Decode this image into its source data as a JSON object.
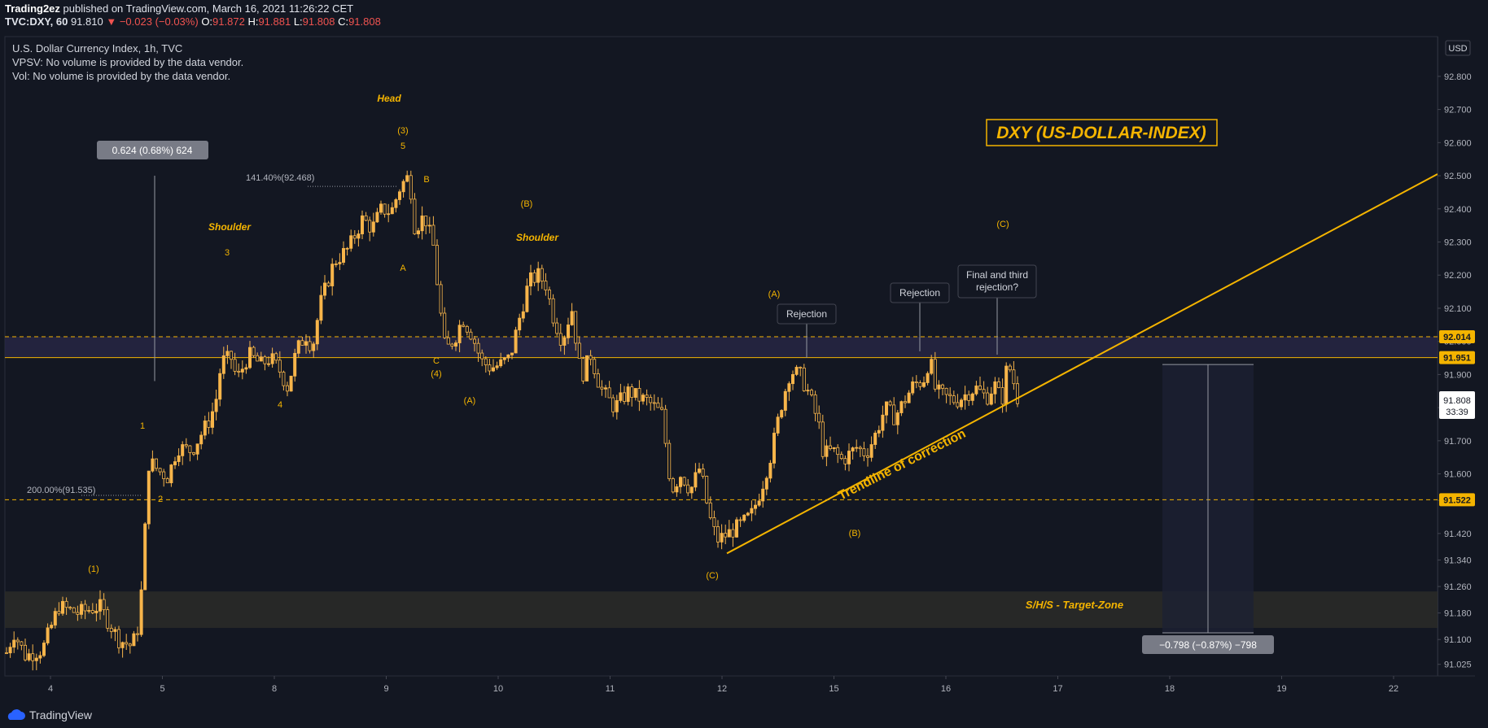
{
  "publish": {
    "author": "Trading2ez",
    "published_on": "published on TradingView.com, March 16, 2021 11:26:22 CET"
  },
  "quote": {
    "symbol": "TVC:DXY, 60",
    "last": "91.810",
    "change": "−0.023 (−0.03%)",
    "o_label": "O:",
    "o": "91.872",
    "h_label": "H:",
    "h": "91.881",
    "l_label": "L:",
    "l": "91.808",
    "c_label": "C:",
    "c": "91.808"
  },
  "legend": {
    "line1": "U.S. Dollar Currency Index, 1h, TVC",
    "line2": "VPSV: No volume is provided by the data vendor.",
    "line3": "Vol: No volume is provided by the data vendor."
  },
  "footer": {
    "brand": "TradingView"
  },
  "colors": {
    "background": "#131722",
    "candle": "#f7b54a",
    "annotation": "#f4b400",
    "trendline": "#f4b400",
    "axis_text": "#b2b5be",
    "dashed_level": "#f4b400",
    "zone": "#2a2848"
  },
  "chart_data": {
    "type": "candlestick",
    "title": "DXY (US-DOLLAR-INDEX)",
    "currency": "USD",
    "ylim": [
      90.99,
      92.92
    ],
    "y_ticks": [
      "92.800",
      "92.700",
      "92.600",
      "92.500",
      "92.400",
      "92.300",
      "92.200",
      "92.100",
      "92.000",
      "91.900",
      "91.800",
      "91.700",
      "91.600",
      "91.520",
      "91.420",
      "91.340",
      "91.260",
      "91.180",
      "91.100",
      "91.025"
    ],
    "x_ticks": [
      "4",
      "5",
      "8",
      "9",
      "10",
      "11",
      "12",
      "15",
      "16",
      "17",
      "18",
      "19",
      "22"
    ],
    "last_price": "91.808",
    "countdown": "33:39",
    "price_labels": [
      {
        "value": "92.014",
        "price": 92.014
      },
      {
        "value": "91.951",
        "price": 91.951
      },
      {
        "value": "91.522",
        "price": 91.522
      }
    ],
    "path_points": [
      [
        0,
        91.06
      ],
      [
        8,
        91.12
      ],
      [
        20,
        91.05
      ],
      [
        38,
        91.07
      ],
      [
        55,
        91.2
      ],
      [
        75,
        91.18
      ],
      [
        98,
        91.2
      ],
      [
        118,
        91.1
      ],
      [
        132,
        91.08
      ],
      [
        140,
        91.15
      ],
      [
        146,
        91.44
      ],
      [
        150,
        91.64
      ],
      [
        160,
        91.61
      ],
      [
        170,
        91.59
      ],
      [
        180,
        91.68
      ],
      [
        195,
        91.67
      ],
      [
        205,
        91.72
      ],
      [
        215,
        91.77
      ],
      [
        222,
        91.84
      ],
      [
        226,
        91.94
      ],
      [
        238,
        91.95
      ],
      [
        242,
        91.88
      ],
      [
        255,
        91.96
      ],
      [
        268,
        91.93
      ],
      [
        278,
        91.95
      ],
      [
        288,
        91.91
      ],
      [
        296,
        91.86
      ],
      [
        305,
        91.97
      ],
      [
        315,
        92.02
      ],
      [
        322,
        91.98
      ],
      [
        330,
        92.11
      ],
      [
        345,
        92.24
      ],
      [
        360,
        92.28
      ],
      [
        375,
        92.37
      ],
      [
        385,
        92.34
      ],
      [
        395,
        92.4
      ],
      [
        405,
        92.39
      ],
      [
        415,
        92.47
      ],
      [
        424,
        92.5
      ],
      [
        430,
        92.34
      ],
      [
        440,
        92.38
      ],
      [
        450,
        92.28
      ],
      [
        455,
        92.13
      ],
      [
        462,
        91.97
      ],
      [
        472,
        92.01
      ],
      [
        480,
        92.07
      ],
      [
        490,
        92.02
      ],
      [
        500,
        91.94
      ],
      [
        510,
        91.92
      ],
      [
        520,
        91.93
      ],
      [
        530,
        91.95
      ],
      [
        540,
        92.07
      ],
      [
        550,
        92.18
      ],
      [
        560,
        92.2
      ],
      [
        568,
        92.17
      ],
      [
        575,
        92.08
      ],
      [
        585,
        92.0
      ],
      [
        595,
        92.1
      ],
      [
        605,
        91.89
      ],
      [
        615,
        91.96
      ],
      [
        625,
        91.86
      ],
      [
        640,
        91.8
      ],
      [
        655,
        91.85
      ],
      [
        665,
        91.83
      ],
      [
        675,
        91.82
      ],
      [
        690,
        91.78
      ],
      [
        700,
        91.55
      ],
      [
        710,
        91.6
      ],
      [
        720,
        91.55
      ],
      [
        730,
        91.62
      ],
      [
        740,
        91.47
      ],
      [
        748,
        91.4
      ],
      [
        760,
        91.42
      ],
      [
        775,
        91.45
      ],
      [
        785,
        91.48
      ],
      [
        795,
        91.56
      ],
      [
        805,
        91.66
      ],
      [
        815,
        91.8
      ],
      [
        825,
        91.91
      ],
      [
        835,
        91.9
      ],
      [
        845,
        91.84
      ],
      [
        855,
        91.75
      ],
      [
        860,
        91.66
      ],
      [
        870,
        91.67
      ],
      [
        880,
        91.64
      ],
      [
        895,
        91.68
      ],
      [
        905,
        91.66
      ],
      [
        915,
        91.72
      ],
      [
        925,
        91.8
      ],
      [
        935,
        91.77
      ],
      [
        945,
        91.82
      ],
      [
        955,
        91.87
      ],
      [
        965,
        91.88
      ],
      [
        972,
        91.95
      ],
      [
        978,
        91.85
      ],
      [
        990,
        91.83
      ],
      [
        1000,
        91.82
      ],
      [
        1010,
        91.84
      ],
      [
        1020,
        91.86
      ],
      [
        1032,
        91.83
      ],
      [
        1040,
        91.87
      ],
      [
        1048,
        91.82
      ],
      [
        1054,
        91.94
      ],
      [
        1060,
        91.88
      ],
      [
        1066,
        91.81
      ]
    ],
    "annotations": {
      "head": "Head",
      "shoulder_left": "Shoulder",
      "shoulder_right": "Shoulder",
      "rejection_1": "Rejection",
      "rejection_2": "Rejection",
      "rejection_3_line1": "Final and third",
      "rejection_3_line2": "rejection?",
      "trendline": "Trendline of correction",
      "target_zone": "S/H/S - Target-Zone",
      "fib_141": "141.40%(92.468)",
      "fib_200": "200.00%(91.535)",
      "measure_up": "0.624 (0.68%) 624",
      "measure_down": "−0.798 (−0.87%) −798",
      "wave_labels": [
        "Head",
        "(3)",
        "5",
        "B",
        "A",
        "C",
        "(4)",
        "(A)",
        "(B)",
        "3",
        "4",
        "1",
        "2",
        "(1)",
        "(C)",
        "(A)",
        "(B)",
        "(C)"
      ]
    }
  }
}
